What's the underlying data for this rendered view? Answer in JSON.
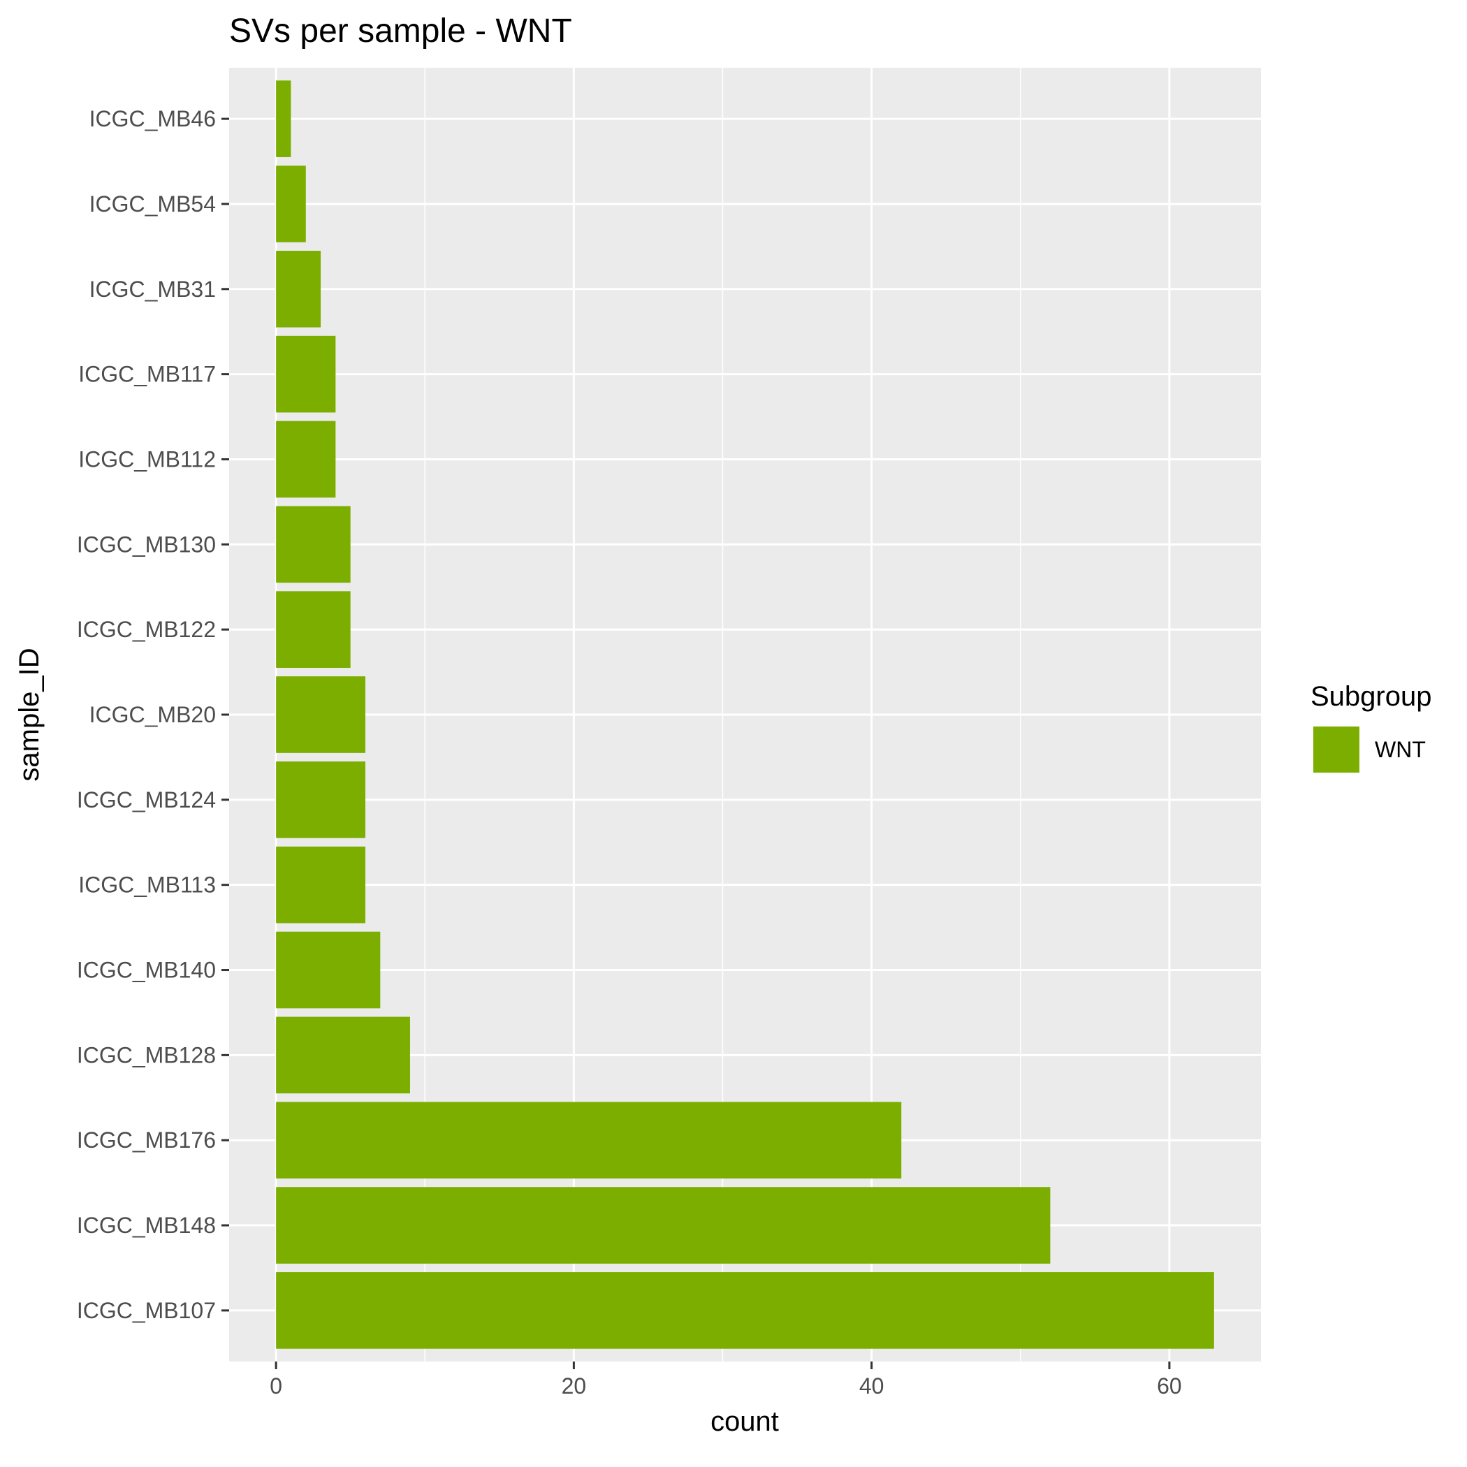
{
  "chart_data": {
    "type": "bar",
    "orientation": "horizontal",
    "title": "SVs per sample - WNT",
    "xlabel": "count",
    "ylabel": "sample_ID",
    "categories": [
      "ICGC_MB46",
      "ICGC_MB54",
      "ICGC_MB31",
      "ICGC_MB117",
      "ICGC_MB112",
      "ICGC_MB130",
      "ICGC_MB122",
      "ICGC_MB20",
      "ICGC_MB124",
      "ICGC_MB113",
      "ICGC_MB140",
      "ICGC_MB128",
      "ICGC_MB176",
      "ICGC_MB148",
      "ICGC_MB107"
    ],
    "series": [
      {
        "name": "WNT",
        "color": "#7CAE00",
        "values": [
          1,
          2,
          3,
          4,
          4,
          5,
          5,
          6,
          6,
          6,
          7,
          9,
          42,
          52,
          63
        ]
      }
    ],
    "xlim": [
      -3.15,
      66.15
    ],
    "xticks": [
      "0",
      "20",
      "40",
      "60"
    ],
    "xtick_values": [
      0,
      20,
      40,
      60
    ],
    "grid": true,
    "panel_background": "#EBEBEB",
    "legend": {
      "title": "Subgroup",
      "placement": "right",
      "items": [
        "WNT"
      ]
    }
  }
}
